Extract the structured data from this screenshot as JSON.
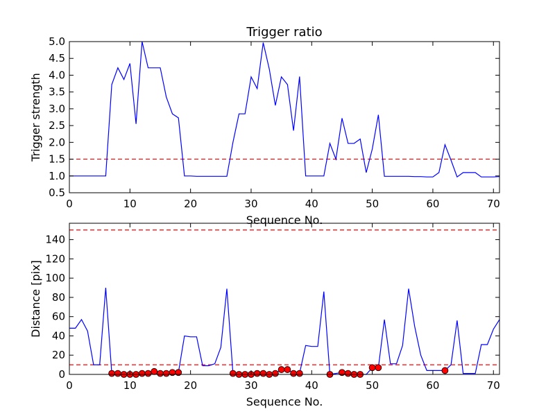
{
  "chart_data": [
    {
      "type": "line",
      "title": "Trigger ratio",
      "xlabel": "Sequence No.",
      "ylabel": "Trigger strength",
      "xlim": [
        0,
        71
      ],
      "ylim": [
        0.5,
        5.0
      ],
      "xticks": [
        0,
        10,
        20,
        30,
        40,
        50,
        60,
        70
      ],
      "yticks": [
        0.5,
        1.0,
        1.5,
        2.0,
        2.5,
        3.0,
        3.5,
        4.0,
        4.5,
        5.0
      ],
      "ytick_labels": [
        "0.5",
        "1.0",
        "1.5",
        "2.0",
        "2.5",
        "3.0",
        "3.5",
        "4.0",
        "4.5",
        "5.0"
      ],
      "grid": false,
      "series": [
        {
          "color": "#0000ff",
          "x": [
            0,
            1,
            2,
            3,
            4,
            5,
            6,
            7,
            8,
            9,
            10,
            11,
            12,
            13,
            14,
            15,
            16,
            17,
            18,
            19,
            20,
            21,
            22,
            23,
            24,
            25,
            26,
            27,
            28,
            29,
            30,
            31,
            32,
            33,
            34,
            35,
            36,
            37,
            38,
            39,
            40,
            41,
            42,
            43,
            44,
            45,
            46,
            47,
            48,
            49,
            50,
            51,
            52,
            53,
            54,
            55,
            56,
            57,
            58,
            59,
            60,
            61,
            62,
            63,
            64,
            65,
            66,
            67,
            68,
            69,
            70,
            71
          ],
          "y": [
            1.0,
            1.0,
            1.0,
            1.0,
            1.0,
            1.0,
            1.0,
            3.72,
            4.22,
            3.87,
            4.35,
            2.55,
            5.0,
            4.22,
            4.22,
            4.22,
            3.35,
            2.85,
            2.73,
            1.0,
            1.0,
            0.99,
            0.99,
            0.99,
            0.99,
            0.99,
            0.99,
            2.0,
            2.85,
            2.85,
            3.95,
            3.6,
            4.97,
            4.18,
            3.1,
            3.95,
            3.72,
            2.35,
            3.96,
            1.0,
            1.0,
            1.0,
            1.0,
            1.97,
            1.5,
            2.72,
            1.97,
            1.97,
            2.1,
            1.1,
            1.8,
            2.82,
            0.99,
            0.99,
            0.99,
            0.99,
            0.99,
            0.98,
            0.98,
            0.97,
            0.97,
            1.1,
            1.93,
            1.47,
            0.97,
            1.1,
            1.1,
            1.1,
            0.97,
            0.97,
            0.97,
            0.98
          ]
        }
      ],
      "reference_lines": [
        {
          "y": 1.5,
          "color": "#ff0000",
          "style": "dashed"
        }
      ]
    },
    {
      "type": "line",
      "title": "",
      "xlabel": "Sequence No.",
      "ylabel": "Distance [pix]",
      "xlim": [
        0,
        71
      ],
      "ylim": [
        0,
        157
      ],
      "xticks": [
        0,
        10,
        20,
        30,
        40,
        50,
        60,
        70
      ],
      "yticks": [
        0,
        20,
        40,
        60,
        80,
        100,
        120,
        140
      ],
      "ytick_labels": [
        "0",
        "20",
        "40",
        "60",
        "80",
        "100",
        "120",
        "140"
      ],
      "grid": false,
      "series": [
        {
          "color": "#0000ff",
          "x": [
            0,
            1,
            2,
            3,
            4,
            5,
            6,
            7,
            8,
            9,
            10,
            11,
            12,
            13,
            14,
            15,
            16,
            17,
            18,
            19,
            20,
            21,
            22,
            23,
            24,
            25,
            26,
            27,
            28,
            29,
            30,
            31,
            32,
            33,
            34,
            35,
            36,
            37,
            38,
            39,
            40,
            41,
            42,
            43,
            44,
            45,
            46,
            47,
            48,
            49,
            50,
            51,
            52,
            53,
            54,
            55,
            56,
            57,
            58,
            59,
            60,
            61,
            62,
            63,
            64,
            65,
            66,
            67,
            68,
            69,
            70,
            71
          ],
          "y": [
            48,
            48,
            57,
            45,
            10,
            10,
            90,
            1,
            1,
            0,
            0,
            0,
            1,
            1,
            3,
            1,
            1,
            2,
            2,
            40,
            39,
            39,
            9,
            9,
            11,
            28,
            89,
            1,
            0,
            0,
            0,
            1,
            1,
            0,
            1,
            5,
            5,
            1,
            1,
            30,
            29,
            29,
            86,
            0,
            1,
            2,
            1,
            0,
            0,
            0,
            7,
            7,
            57,
            11,
            11,
            30,
            89,
            50,
            20,
            4,
            4,
            4,
            4,
            10,
            56,
            1,
            1,
            1,
            31,
            31,
            47,
            57
          ]
        },
        {
          "type": "scatter",
          "color": "#ff0000",
          "x": [
            7,
            8,
            9,
            10,
            11,
            12,
            13,
            14,
            15,
            16,
            17,
            18,
            27,
            28,
            29,
            30,
            31,
            32,
            33,
            34,
            35,
            36,
            37,
            38,
            43,
            45,
            46,
            47,
            48,
            50,
            51,
            62
          ],
          "y": [
            1,
            1,
            0,
            0,
            0,
            1,
            1,
            3,
            1,
            1,
            2,
            2,
            1,
            0,
            0,
            0,
            1,
            1,
            0,
            1,
            5,
            5,
            1,
            1,
            0,
            2,
            1,
            0,
            0,
            7,
            7,
            4
          ]
        }
      ],
      "reference_lines": [
        {
          "y": 150,
          "color": "#ff0000",
          "style": "dashed"
        },
        {
          "y": 10,
          "color": "#ff0000",
          "style": "dashed"
        }
      ]
    }
  ]
}
